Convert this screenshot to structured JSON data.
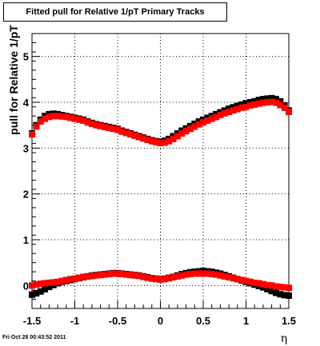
{
  "chart_data": {
    "type": "scatter",
    "title": "Fitted pull for Relative 1/pT  Primary Tracks",
    "xlabel": "η",
    "ylabel": "pull for Relative 1/pT",
    "xlim": [
      -1.5,
      1.5
    ],
    "ylim": [
      -0.5,
      5.5
    ],
    "xticks": [
      -1.5,
      -1,
      -0.5,
      0,
      0.5,
      1,
      1.5
    ],
    "xtick_labels": [
      "-1.5",
      "-1",
      "-0.5",
      "0",
      "0.5",
      "1",
      "1.5"
    ],
    "yticks": [
      0,
      1,
      2,
      3,
      4,
      5
    ],
    "ytick_labels": [
      "0",
      "1",
      "2",
      "3",
      "4",
      "5"
    ],
    "grid": true,
    "legend": false,
    "series": [
      {
        "color": "#000000",
        "x": [
          -1.5,
          -1.45,
          -1.4,
          -1.35,
          -1.3,
          -1.25,
          -1.2,
          -1.15,
          -1.1,
          -1.05,
          -1.0,
          -0.95,
          -0.9,
          -0.85,
          -0.8,
          -0.75,
          -0.7,
          -0.65,
          -0.6,
          -0.55,
          -0.5,
          -0.45,
          -0.4,
          -0.35,
          -0.3,
          -0.25,
          -0.2,
          -0.15,
          -0.1,
          -0.05,
          0.0,
          0.05,
          0.1,
          0.15,
          0.2,
          0.25,
          0.3,
          0.35,
          0.4,
          0.45,
          0.5,
          0.55,
          0.6,
          0.65,
          0.7,
          0.75,
          0.8,
          0.85,
          0.9,
          0.95,
          1.0,
          1.05,
          1.1,
          1.15,
          1.2,
          1.25,
          1.3,
          1.35,
          1.4,
          1.45,
          1.5
        ],
        "y": [
          3.32,
          3.5,
          3.62,
          3.7,
          3.74,
          3.75,
          3.74,
          3.72,
          3.7,
          3.68,
          3.66,
          3.64,
          3.62,
          3.58,
          3.55,
          3.52,
          3.5,
          3.48,
          3.46,
          3.44,
          3.42,
          3.38,
          3.35,
          3.32,
          3.29,
          3.26,
          3.23,
          3.2,
          3.17,
          3.15,
          3.14,
          3.16,
          3.2,
          3.26,
          3.32,
          3.38,
          3.43,
          3.48,
          3.53,
          3.58,
          3.62,
          3.66,
          3.7,
          3.74,
          3.78,
          3.82,
          3.86,
          3.89,
          3.92,
          3.95,
          3.98,
          4.0,
          4.02,
          4.05,
          4.07,
          4.08,
          4.09,
          4.07,
          4.02,
          3.93,
          3.82
        ]
      },
      {
        "color": "#ff0000",
        "x": [
          -1.5,
          -1.45,
          -1.4,
          -1.35,
          -1.3,
          -1.25,
          -1.2,
          -1.15,
          -1.1,
          -1.05,
          -1.0,
          -0.95,
          -0.9,
          -0.85,
          -0.8,
          -0.75,
          -0.7,
          -0.65,
          -0.6,
          -0.55,
          -0.5,
          -0.45,
          -0.4,
          -0.35,
          -0.3,
          -0.25,
          -0.2,
          -0.15,
          -0.1,
          -0.05,
          0.0,
          0.05,
          0.1,
          0.15,
          0.2,
          0.25,
          0.3,
          0.35,
          0.4,
          0.45,
          0.5,
          0.55,
          0.6,
          0.65,
          0.7,
          0.75,
          0.8,
          0.85,
          0.9,
          0.95,
          1.0,
          1.05,
          1.1,
          1.15,
          1.2,
          1.25,
          1.3,
          1.35,
          1.4,
          1.45,
          1.5
        ],
        "y": [
          3.3,
          3.47,
          3.58,
          3.64,
          3.68,
          3.7,
          3.7,
          3.69,
          3.68,
          3.66,
          3.64,
          3.62,
          3.6,
          3.56,
          3.53,
          3.5,
          3.48,
          3.46,
          3.44,
          3.42,
          3.4,
          3.36,
          3.33,
          3.3,
          3.27,
          3.24,
          3.21,
          3.18,
          3.15,
          3.13,
          3.11,
          3.12,
          3.15,
          3.2,
          3.26,
          3.32,
          3.37,
          3.42,
          3.47,
          3.52,
          3.56,
          3.6,
          3.64,
          3.68,
          3.72,
          3.76,
          3.79,
          3.82,
          3.85,
          3.88,
          3.9,
          3.93,
          3.95,
          3.97,
          3.99,
          4.0,
          4.01,
          3.99,
          3.94,
          3.88,
          3.79
        ]
      },
      {
        "color": "#000000",
        "x": [
          -1.5,
          -1.45,
          -1.4,
          -1.35,
          -1.3,
          -1.25,
          -1.2,
          -1.15,
          -1.1,
          -1.05,
          -1.0,
          -0.95,
          -0.9,
          -0.85,
          -0.8,
          -0.75,
          -0.7,
          -0.65,
          -0.6,
          -0.55,
          -0.5,
          -0.45,
          -0.4,
          -0.35,
          -0.3,
          -0.25,
          -0.2,
          -0.15,
          -0.1,
          -0.05,
          0.0,
          0.05,
          0.1,
          0.15,
          0.2,
          0.25,
          0.3,
          0.35,
          0.4,
          0.45,
          0.5,
          0.55,
          0.6,
          0.65,
          0.7,
          0.75,
          0.8,
          0.85,
          0.9,
          0.95,
          1.0,
          1.05,
          1.1,
          1.15,
          1.2,
          1.25,
          1.3,
          1.35,
          1.4,
          1.45,
          1.5
        ],
        "y": [
          -0.2,
          -0.17,
          -0.13,
          -0.08,
          -0.03,
          0.01,
          0.05,
          0.08,
          0.1,
          0.12,
          0.14,
          0.16,
          0.18,
          0.2,
          0.22,
          0.23,
          0.24,
          0.25,
          0.26,
          0.27,
          0.27,
          0.26,
          0.25,
          0.24,
          0.23,
          0.22,
          0.2,
          0.18,
          0.16,
          0.15,
          0.14,
          0.15,
          0.17,
          0.19,
          0.22,
          0.25,
          0.27,
          0.29,
          0.3,
          0.31,
          0.32,
          0.31,
          0.3,
          0.28,
          0.26,
          0.23,
          0.2,
          0.17,
          0.14,
          0.11,
          0.08,
          0.05,
          0.02,
          -0.01,
          -0.04,
          -0.08,
          -0.12,
          -0.16,
          -0.19,
          -0.21,
          -0.22
        ]
      },
      {
        "color": "#ff0000",
        "x": [
          -1.5,
          -1.45,
          -1.4,
          -1.35,
          -1.3,
          -1.25,
          -1.2,
          -1.15,
          -1.1,
          -1.05,
          -1.0,
          -0.95,
          -0.9,
          -0.85,
          -0.8,
          -0.75,
          -0.7,
          -0.65,
          -0.6,
          -0.55,
          -0.5,
          -0.45,
          -0.4,
          -0.35,
          -0.3,
          -0.25,
          -0.2,
          -0.15,
          -0.1,
          -0.05,
          0.0,
          0.05,
          0.1,
          0.15,
          0.2,
          0.25,
          0.3,
          0.35,
          0.4,
          0.45,
          0.5,
          0.55,
          0.6,
          0.65,
          0.7,
          0.75,
          0.8,
          0.85,
          0.9,
          0.95,
          1.0,
          1.05,
          1.1,
          1.15,
          1.2,
          1.25,
          1.3,
          1.35,
          1.4,
          1.45,
          1.5
        ],
        "y": [
          0.0,
          0.02,
          0.04,
          0.05,
          0.06,
          0.07,
          0.08,
          0.1,
          0.12,
          0.14,
          0.15,
          0.17,
          0.19,
          0.2,
          0.21,
          0.22,
          0.23,
          0.24,
          0.25,
          0.26,
          0.26,
          0.25,
          0.24,
          0.23,
          0.22,
          0.21,
          0.19,
          0.17,
          0.15,
          0.14,
          0.13,
          0.14,
          0.16,
          0.18,
          0.2,
          0.22,
          0.24,
          0.25,
          0.26,
          0.26,
          0.26,
          0.26,
          0.25,
          0.24,
          0.22,
          0.2,
          0.18,
          0.16,
          0.14,
          0.12,
          0.1,
          0.08,
          0.06,
          0.05,
          0.03,
          0.01,
          0.0,
          -0.02,
          -0.03,
          -0.04,
          -0.05
        ]
      }
    ]
  },
  "footer": {
    "timestamp": "Fri Oct 28 00:43:52 2011"
  }
}
